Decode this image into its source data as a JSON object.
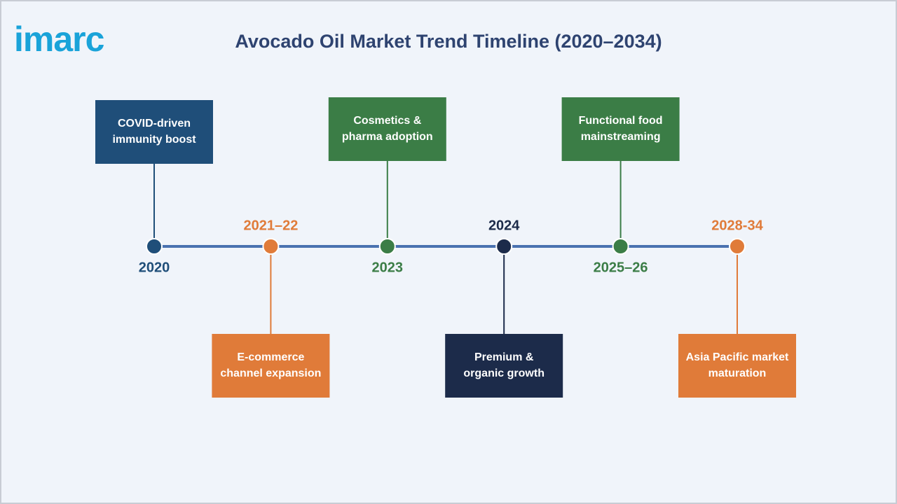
{
  "logo": "imarc",
  "title": "Avocado Oil Market Trend Timeline (2020–2034)",
  "events": [
    {
      "year": "2020",
      "label": [
        "COVID-driven",
        "immunity boost"
      ],
      "color": "#1f4e79"
    },
    {
      "year": "2021–22",
      "label": [
        "E-commerce",
        "channel expansion"
      ],
      "color": "#e07b39"
    },
    {
      "year": "2023",
      "label": [
        "Cosmetics &",
        "pharma adoption"
      ],
      "color": "#3b7d46"
    },
    {
      "year": "2024",
      "label": [
        "Premium &",
        "organic growth"
      ],
      "color": "#1c2b4a"
    },
    {
      "year": "2025–26",
      "label": [
        "Functional food",
        "mainstreaming"
      ],
      "color": "#3b7d46"
    },
    {
      "year": "2028-34",
      "label": [
        "Asia Pacific market",
        "maturation"
      ],
      "color": "#e07b39"
    }
  ]
}
